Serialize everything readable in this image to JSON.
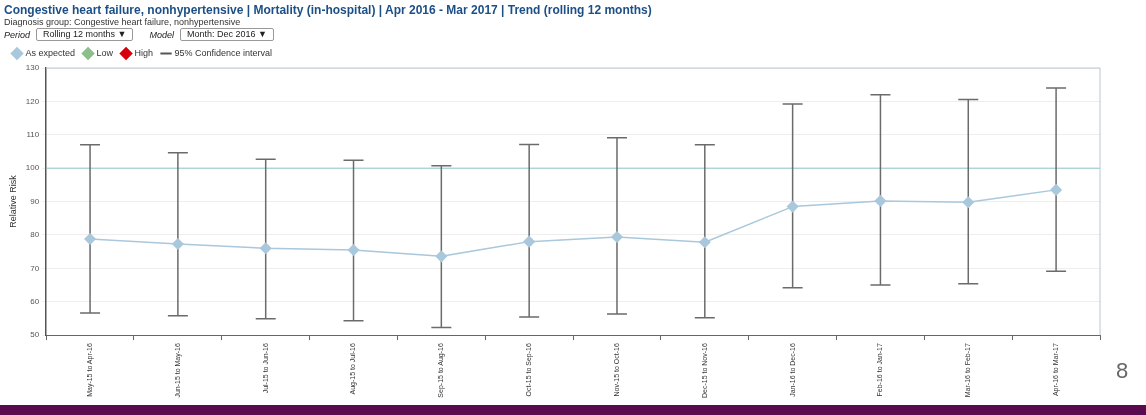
{
  "chart_data": {
    "type": "line",
    "title": "Congestive heart failure, nonhypertensive | Mortality (in-hospital) | Apr 2016 - Mar 2017 | Trend (rolling 12 months)",
    "subtitle": "Diagnosis group: Congestive heart failure, nonhypertensive",
    "ylabel": "Relative Risk",
    "categories": [
      "May-15 to Apr-16",
      "Jun-15 to May-16",
      "Jul-15 to Jun-16",
      "Aug-15 to Jul-16",
      "Sep-15 to Aug-16",
      "Oct-15 to Sep-16",
      "Nov-15 to Oct-16",
      "Dec-15 to Nov-16",
      "Jan-16 to Dec-16",
      "Feb-16 to Jan-17",
      "Mar-16 to Feb-17",
      "Apr-16 to Mar-17"
    ],
    "series": [
      {
        "name": "As expected",
        "color": "#a9c8dc",
        "values": [
          78.8,
          77.3,
          76,
          75.5,
          73.6,
          78,
          79.4,
          77.8,
          88.5,
          90.2,
          89.8,
          93.5
        ],
        "errors": [
          [
            56.6,
            107
          ],
          [
            55.8,
            104.6
          ],
          [
            54.9,
            102.7
          ],
          [
            54.3,
            102.4
          ],
          [
            52.3,
            100.7
          ],
          [
            55.4,
            107.1
          ],
          [
            56.3,
            109.1
          ],
          [
            55.2,
            107
          ],
          [
            64.2,
            119.2
          ],
          [
            65,
            122
          ],
          [
            65.4,
            120.6
          ],
          [
            69.1,
            124
          ]
        ]
      },
      {
        "name": "Low",
        "color": "#8cbf8c",
        "values": [
          null,
          null,
          null,
          null,
          null,
          null,
          null,
          null,
          null,
          null,
          null,
          null
        ]
      },
      {
        "name": "High",
        "color": "#d9000d",
        "values": [
          null,
          null,
          null,
          null,
          null,
          null,
          null,
          null,
          null,
          null,
          null,
          null
        ]
      }
    ],
    "ylim": [
      50,
      130
    ],
    "yticks": [
      50,
      60,
      70,
      80,
      90,
      100,
      110,
      120,
      130
    ],
    "ref_lines": [
      {
        "axis": "y",
        "value": 100,
        "color": "#8ec8c2"
      }
    ],
    "grid": "y",
    "legend": "top left",
    "marker": "diamond",
    "annotations": [
      "95% Confidence interval",
      "Period",
      "Rolling 12 months ▼",
      "Model",
      "Month: Dec 2016 ▼",
      "8"
    ]
  }
}
